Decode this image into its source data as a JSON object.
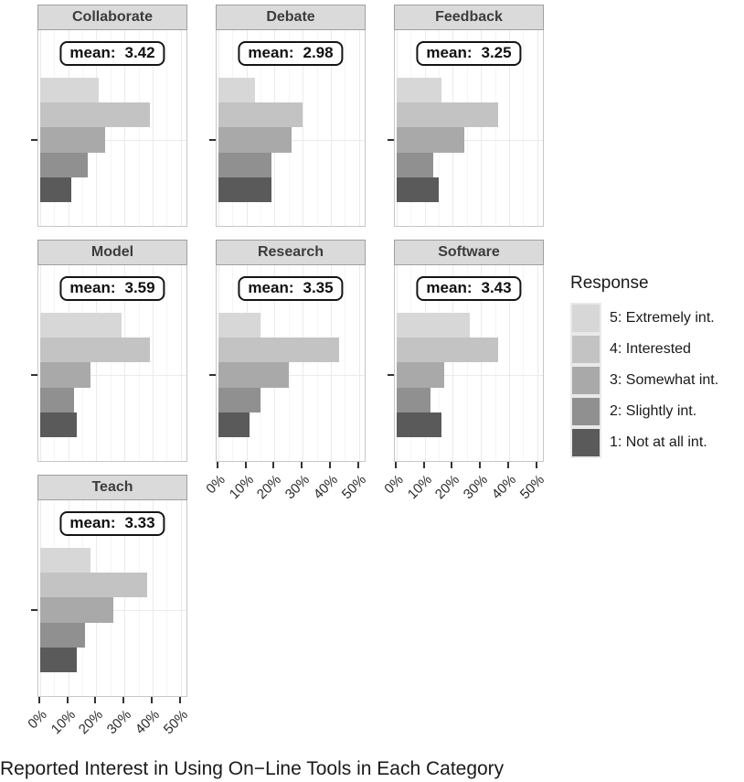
{
  "caption": "Reported Interest in Using On−Line Tools in Each Category",
  "legend": {
    "title": "Response",
    "position": "right",
    "items": [
      {
        "label": "5: Extremely int.",
        "color": "#d7d7d7"
      },
      {
        "label": "4: Interested",
        "color": "#c3c3c3"
      },
      {
        "label": "3: Somewhat int.",
        "color": "#a9a9a9"
      },
      {
        "label": "2: Slightly int.",
        "color": "#909090"
      },
      {
        "label": "1: Not at all int.",
        "color": "#5a5a5a"
      }
    ]
  },
  "chart_data": {
    "type": "bar",
    "orientation": "horizontal",
    "grid": true,
    "xlabel": "Reported Interest in Using On−Line Tools in Each Category",
    "x_ticks": [
      "0%",
      "10%",
      "20%",
      "30%",
      "40%",
      "50%"
    ],
    "x_tick_values": [
      0,
      10,
      20,
      30,
      40,
      50
    ],
    "xlim": [
      0,
      53
    ],
    "categories": [
      "5: Extremely int.",
      "4: Interested",
      "3: Somewhat int.",
      "2: Slightly int.",
      "1: Not at all int."
    ],
    "colors": [
      "#d7d7d7",
      "#c3c3c3",
      "#a9a9a9",
      "#909090",
      "#5a5a5a"
    ],
    "mean_label_prefix": "mean:",
    "facets": [
      {
        "name": "Collaborate",
        "mean": "3.42",
        "values": [
          21,
          39,
          23,
          17,
          11
        ],
        "row": 0,
        "col": 0,
        "show_x_axis": false
      },
      {
        "name": "Debate",
        "mean": "2.98",
        "values": [
          13,
          30,
          26,
          19,
          19
        ],
        "row": 0,
        "col": 1,
        "show_x_axis": false
      },
      {
        "name": "Feedback",
        "mean": "3.25",
        "values": [
          16,
          36,
          24,
          13,
          15
        ],
        "row": 0,
        "col": 2,
        "show_x_axis": false
      },
      {
        "name": "Model",
        "mean": "3.59",
        "values": [
          29,
          39,
          18,
          12,
          13
        ],
        "row": 1,
        "col": 0,
        "show_x_axis": false
      },
      {
        "name": "Research",
        "mean": "3.35",
        "values": [
          15,
          43,
          25,
          15,
          11
        ],
        "row": 1,
        "col": 1,
        "show_x_axis": true
      },
      {
        "name": "Software",
        "mean": "3.43",
        "values": [
          26,
          36,
          17,
          12,
          16
        ],
        "row": 1,
        "col": 2,
        "show_x_axis": true
      },
      {
        "name": "Teach",
        "mean": "3.33",
        "values": [
          18,
          38,
          26,
          16,
          13
        ],
        "row": 2,
        "col": 0,
        "show_x_axis": true
      }
    ]
  }
}
